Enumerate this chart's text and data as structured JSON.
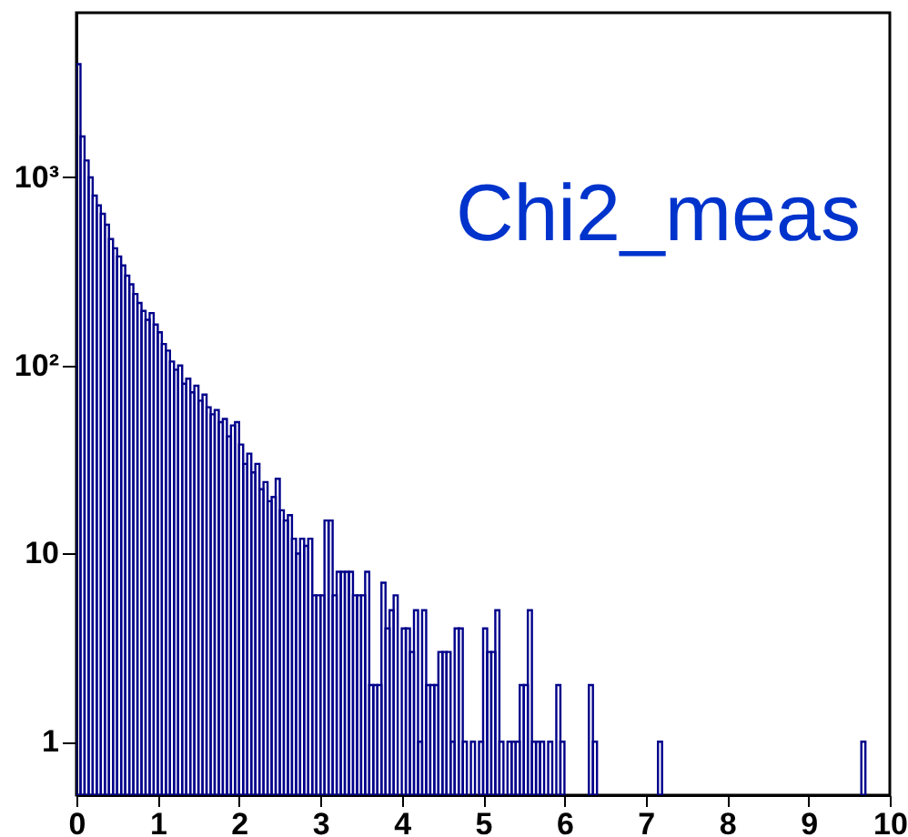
{
  "chart_data": {
    "type": "histogram",
    "title": "Chi2_meas",
    "color": "#00008b",
    "log": "y",
    "grid": false,
    "bins": [
      0,
      0.05,
      0.1,
      0.15,
      0.2,
      0.25,
      0.3,
      0.35,
      0.4,
      0.45,
      0.5,
      0.55,
      0.6,
      0.65,
      0.7,
      0.75,
      0.8,
      0.85,
      0.9,
      0.95,
      1,
      1.05,
      1.1,
      1.15,
      1.2,
      1.25,
      1.3,
      1.35,
      1.4,
      1.45,
      1.5,
      1.55,
      1.6,
      1.65,
      1.7,
      1.75,
      1.8,
      1.85,
      1.9,
      1.95,
      2,
      2.05,
      2.1,
      2.15,
      2.2,
      2.25,
      2.3,
      2.35,
      2.4,
      2.45,
      2.5,
      2.55,
      2.6,
      2.65,
      2.7,
      2.75,
      2.8,
      2.85,
      2.9,
      2.95,
      3,
      3.05,
      3.1,
      3.15,
      3.2,
      3.25,
      3.3,
      3.35,
      3.4,
      3.45,
      3.5,
      3.55,
      3.6,
      3.65,
      3.7,
      3.75,
      3.8,
      3.85,
      3.9,
      3.95,
      4,
      4.05,
      4.1,
      4.15,
      4.2,
      4.25,
      4.3,
      4.35,
      4.4,
      4.45,
      4.5,
      4.55,
      4.6,
      4.65,
      4.7,
      4.75,
      4.8,
      4.85,
      4.9,
      4.95,
      5,
      5.05,
      5.1,
      5.15,
      5.2,
      5.25,
      5.3,
      5.35,
      5.4,
      5.45,
      5.5,
      5.55,
      5.6,
      5.65,
      5.7,
      5.75,
      5.8,
      5.85,
      5.9,
      5.95,
      6,
      6.05,
      6.1,
      6.15,
      6.2,
      6.25,
      6.3,
      6.35,
      6.4,
      6.45,
      6.5,
      6.55,
      6.6,
      6.65,
      6.7,
      6.75,
      6.8,
      6.85,
      6.9,
      6.95,
      7,
      7.05,
      7.1,
      7.15,
      7.2,
      7.25,
      7.3,
      7.35,
      7.4,
      7.45,
      7.5,
      7.55,
      7.6,
      7.65,
      7.7,
      7.75,
      7.8,
      7.85,
      7.9,
      7.95,
      8,
      8.05,
      8.1,
      8.15,
      8.2,
      8.25,
      8.3,
      8.35,
      8.4,
      8.45,
      8.5,
      8.55,
      8.6,
      8.65,
      8.7,
      8.75,
      8.8,
      8.85,
      8.9,
      8.95,
      9,
      9.05,
      9.1,
      9.15,
      9.2,
      9.25,
      9.3,
      9.35,
      9.4,
      9.45,
      9.5,
      9.55,
      9.6,
      9.65,
      9.7,
      9.75,
      9.8,
      9.85,
      9.9,
      9.95,
      10
    ],
    "values": [
      4000,
      1650,
      1230,
      1000,
      800,
      710,
      640,
      560,
      470,
      420,
      380,
      340,
      300,
      270,
      240,
      215,
      195,
      175,
      190,
      165,
      150,
      130,
      120,
      105,
      95,
      100,
      80,
      85,
      72,
      78,
      65,
      70,
      60,
      55,
      58,
      50,
      52,
      42,
      48,
      50,
      38,
      30,
      34,
      27,
      30,
      22,
      24,
      19,
      20,
      25,
      17,
      15,
      16,
      12,
      10,
      12,
      11,
      12,
      6,
      6,
      6,
      15,
      15,
      6,
      8,
      8,
      8,
      8,
      6,
      6,
      6,
      8,
      2,
      2,
      2,
      7,
      4,
      5,
      6,
      null,
      4,
      4,
      3,
      5,
      1,
      5,
      2,
      2,
      2,
      3,
      3,
      3,
      1,
      4,
      4,
      1,
      null,
      1,
      null,
      1,
      4,
      3,
      3,
      5,
      1,
      null,
      1,
      1,
      1,
      2,
      2,
      5,
      1,
      1,
      1,
      null,
      1,
      null,
      2,
      1,
      null,
      null,
      null,
      null,
      null,
      null,
      2,
      1,
      null,
      null,
      null,
      null,
      null,
      null,
      null,
      null,
      null,
      null,
      null,
      null,
      null,
      null,
      null,
      1,
      null,
      null,
      null,
      null,
      null,
      null,
      null,
      null,
      null,
      null,
      null,
      null,
      null,
      null,
      null,
      null,
      null,
      null,
      null,
      null,
      null,
      null,
      null,
      null,
      null,
      null,
      null,
      null,
      null,
      null,
      null,
      null,
      null,
      null,
      null,
      null,
      null,
      null,
      null,
      null,
      null,
      null,
      null,
      null,
      null,
      null,
      null,
      null,
      null,
      1,
      null,
      null,
      null,
      null,
      null,
      null
    ],
    "xlim": [
      0,
      10
    ],
    "xticks": [
      0,
      1,
      2,
      3,
      4,
      5,
      6,
      7,
      8,
      9,
      10
    ],
    "ylim": [
      0.52,
      7500
    ],
    "yticks": [
      {
        "value": 1,
        "label": "1"
      },
      {
        "value": 10,
        "label": "10"
      },
      {
        "value": 100,
        "label": "10²"
      },
      {
        "value": 1000,
        "label": "10³"
      }
    ]
  }
}
